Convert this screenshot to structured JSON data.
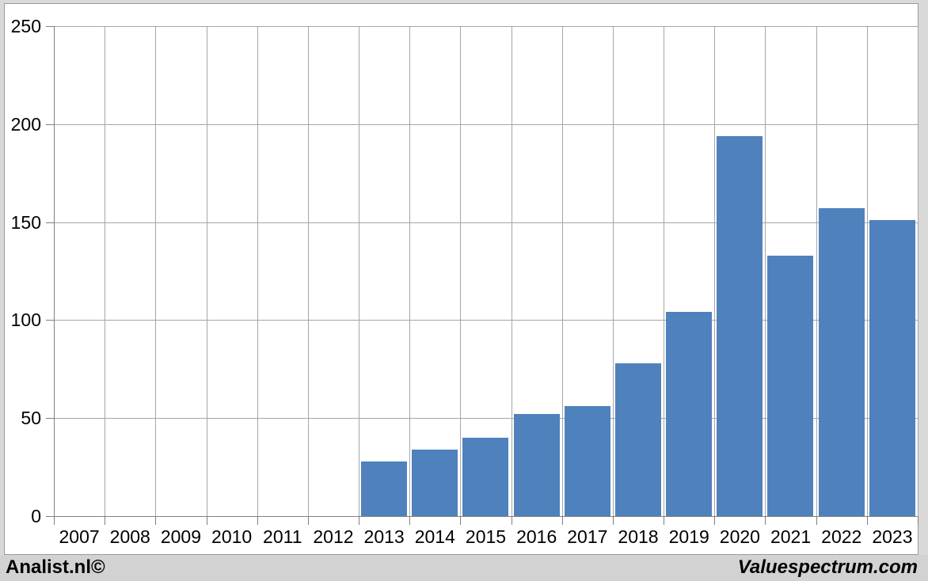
{
  "chart_data": {
    "type": "bar",
    "title": "",
    "xlabel": "",
    "ylabel": "",
    "categories": [
      "2007",
      "2008",
      "2009",
      "2010",
      "2011",
      "2012",
      "2013",
      "2014",
      "2015",
      "2016",
      "2017",
      "2018",
      "2019",
      "2020",
      "2021",
      "2022",
      "2023"
    ],
    "values": [
      null,
      null,
      null,
      null,
      null,
      null,
      28,
      34,
      40,
      52,
      56,
      78,
      104,
      194,
      133,
      157,
      151
    ],
    "ylim": [
      0,
      250
    ],
    "yticks": [
      0,
      50,
      100,
      150,
      200,
      250
    ],
    "grid": true,
    "legend": false,
    "bar_color": "#4f81bd"
  },
  "colors": {
    "bar": "#4f81bd",
    "gridline": "#a6a6a6",
    "axis": "#808080",
    "page_background": "#d9d9d9",
    "plot_background": "#ffffff",
    "footer_background": "#d2d2d2",
    "text": "#000000"
  },
  "footer": {
    "left": "Analist.nl©",
    "right": "Valuespectrum.com"
  }
}
